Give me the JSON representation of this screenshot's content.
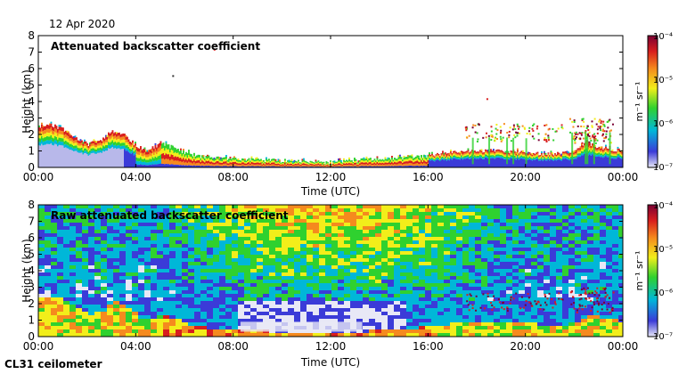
{
  "date": "12 Apr 2020",
  "instrument": "CL31 ceilometer",
  "colors": {
    "low": "#e8e8f6",
    "blue": "#3b3bd8",
    "cyan": "#00b7d8",
    "green": "#2fd12f",
    "yellow": "#f2ee1a",
    "orange": "#f58a1e",
    "red": "#d81e1e",
    "dark": "#7a0033"
  },
  "chart_data": [
    {
      "type": "heatmap",
      "title": "Attenuated backscatter coefficient",
      "xlabel": "Time (UTC)",
      "ylabel": "Height (km)",
      "x_ticks": [
        "00:00",
        "04:00",
        "08:00",
        "12:00",
        "16:00",
        "20:00",
        "00:00"
      ],
      "y_ticks": [
        "0",
        "1",
        "2",
        "3",
        "4",
        "5",
        "6",
        "7",
        "8"
      ],
      "xlim_hours": [
        0,
        24
      ],
      "ylim_km": [
        0,
        8
      ],
      "colorbar": {
        "scale": "log",
        "range": [
          1e-07,
          0.0001
        ],
        "labels": [
          "10⁻⁴",
          "10⁻⁵",
          "10⁻⁶",
          "10⁻⁷"
        ],
        "unit": "m⁻¹ sr⁻¹"
      },
      "layer_top_km": [
        [
          0,
          2.5
        ],
        [
          0.5,
          2.6
        ],
        [
          1,
          2.3
        ],
        [
          1.5,
          1.8
        ],
        [
          2,
          1.4
        ],
        [
          2.5,
          1.6
        ],
        [
          3,
          2.2
        ],
        [
          3.5,
          2.0
        ],
        [
          4,
          1.3
        ],
        [
          4.5,
          1.0
        ],
        [
          5,
          1.5
        ],
        [
          5.5,
          1.2
        ],
        [
          6,
          0.9
        ],
        [
          6.5,
          0.7
        ],
        [
          7,
          0.6
        ],
        [
          8,
          0.5
        ],
        [
          10,
          0.4
        ],
        [
          12,
          0.3
        ],
        [
          13,
          0.4
        ],
        [
          14,
          0.5
        ],
        [
          15,
          0.6
        ],
        [
          16,
          0.7
        ],
        [
          17,
          0.9
        ],
        [
          18,
          1.0
        ],
        [
          19,
          1.0
        ],
        [
          20,
          0.9
        ],
        [
          21,
          0.8
        ],
        [
          22,
          0.9
        ],
        [
          22.5,
          1.5
        ],
        [
          23,
          1.2
        ],
        [
          24,
          1.0
        ]
      ],
      "clouds_km": [
        {
          "t": [
            17.5,
            21.5
          ],
          "h": [
            1.6,
            2.7
          ]
        },
        {
          "t": [
            21.8,
            23.6
          ],
          "h": [
            1.5,
            3.0
          ]
        }
      ]
    },
    {
      "type": "heatmap",
      "title": "Raw attenuated backscatter coefficient",
      "xlabel": "Time (UTC)",
      "ylabel": "Height (km)",
      "x_ticks": [
        "00:00",
        "04:00",
        "08:00",
        "12:00",
        "16:00",
        "20:00",
        "00:00"
      ],
      "y_ticks": [
        "0",
        "1",
        "2",
        "3",
        "4",
        "5",
        "6",
        "7",
        "8"
      ],
      "xlim_hours": [
        0,
        24
      ],
      "ylim_km": [
        0,
        8
      ],
      "colorbar": {
        "scale": "log",
        "range": [
          1e-07,
          0.0001
        ],
        "labels": [
          "10⁻⁴",
          "10⁻⁵",
          "10⁻⁶",
          "10⁻⁷"
        ],
        "unit": "m⁻¹ sr⁻¹"
      }
    }
  ]
}
